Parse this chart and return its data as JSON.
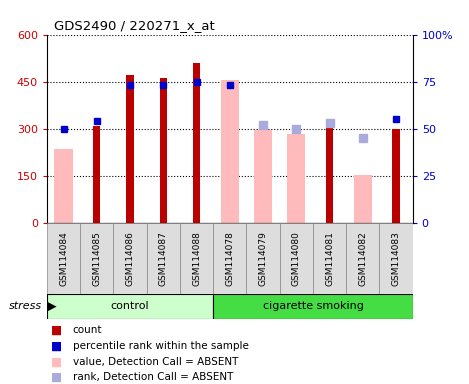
{
  "title": "GDS2490 / 220271_x_at",
  "categories": [
    "GSM114084",
    "GSM114085",
    "GSM114086",
    "GSM114087",
    "GSM114088",
    "GSM114078",
    "GSM114079",
    "GSM114080",
    "GSM114081",
    "GSM114082",
    "GSM114083"
  ],
  "count_values": [
    null,
    310,
    470,
    460,
    510,
    null,
    null,
    null,
    305,
    null,
    300
  ],
  "rank_values": [
    50,
    54,
    73,
    73,
    75,
    73,
    null,
    null,
    null,
    null,
    55
  ],
  "absent_value_values": [
    235,
    null,
    null,
    null,
    null,
    455,
    297,
    283,
    null,
    153,
    null
  ],
  "absent_rank_values": [
    null,
    null,
    null,
    null,
    null,
    null,
    52,
    50,
    53,
    45,
    null
  ],
  "ylim_left": [
    0,
    600
  ],
  "ylim_right": [
    0,
    100
  ],
  "yticks_left": [
    0,
    150,
    300,
    450,
    600
  ],
  "yticks_right": [
    0,
    25,
    50,
    75,
    100
  ],
  "ytick_labels_left": [
    "0",
    "150",
    "300",
    "450",
    "600"
  ],
  "ytick_labels_right": [
    "0",
    "25",
    "50",
    "75",
    "100%"
  ],
  "color_count": "#bb0000",
  "color_rank": "#0000cc",
  "color_absent_value": "#ffbbbb",
  "color_absent_rank": "#aaaadd",
  "color_control_bg": "#ccffcc",
  "color_smoking_bg": "#44dd44",
  "absent_bar_width": 0.55,
  "count_bar_width": 0.22,
  "n_control": 5,
  "n_smoking": 6
}
